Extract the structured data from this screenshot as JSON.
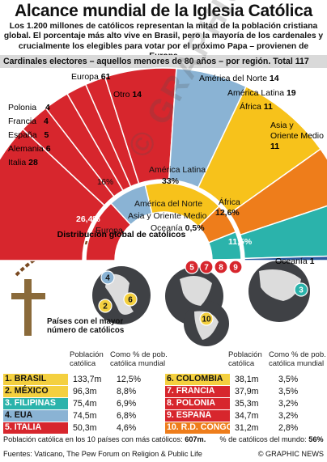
{
  "title": "Alcance mundial de la Iglesia Católica",
  "intro": "Los 1.200 millones de católicos representan la mitad de la población cristiana global. El porcentaje más alto vive en Brasil, pero la mayoría de los cardenales y crucialmente los elegibles para votar por el próximo Papa – provienen de Europa",
  "colors": {
    "europe": "#d7262d",
    "north_america": "#8ab3d4",
    "latin_america": "#f7c21b",
    "africa": "#ee7d1b",
    "asia": "#2bb3ab",
    "oceania": "#2c5aa0",
    "other": "#bdbdbd",
    "highlight_row": "#f4d03f"
  },
  "chart_data": [
    {
      "type": "bar",
      "title": "Cardinales electores – aquellos menores de 80 años – por región. Total 117",
      "total": 117,
      "categories": [
        "Italia",
        "Alemania",
        "España",
        "Francia",
        "Polonia",
        "Otro",
        "América del Norte",
        "América Latina",
        "África",
        "Asia y Oriente Medio",
        "Oceanía"
      ],
      "values": [
        28,
        6,
        5,
        4,
        4,
        14,
        14,
        19,
        11,
        11,
        1
      ],
      "europe_label": "Europa",
      "europe_total": 61,
      "labels": {
        "italia": "Italia",
        "alemania": "Alemania",
        "espana": "España",
        "francia": "Francia",
        "polonia": "Polonia",
        "otro": "Otro",
        "europa": "Europa",
        "america_norte": "América del Norte",
        "america_latina": "América Latina",
        "africa": "África",
        "asia_l1": "Asia y",
        "asia_l2": "Oriente Medio",
        "oceania": "Oceanía"
      }
    },
    {
      "type": "pie",
      "title": "Distribución global de católicos",
      "categories": [
        "Europa",
        "América del Norte",
        "América Latina",
        "África",
        "Asia y Oriente Medio",
        "Oceanía"
      ],
      "values": [
        26.4,
        16,
        33,
        12.6,
        11.5,
        0.5
      ],
      "value_labels": [
        "26,4%",
        "16%",
        "33%",
        "12,6%",
        "11,5%",
        "0,5%"
      ],
      "labels": {
        "europa": "Europa",
        "america_norte": "América del Norte",
        "america_latina": "América Latina",
        "africa": "África",
        "asia": "Asia y Oriente Medio",
        "oceania": "Oceanía"
      }
    }
  ],
  "map": {
    "legend": "Países con el mayor número de católicos",
    "markers": [
      "4",
      "2",
      "6",
      "5",
      "7",
      "8",
      "9",
      "10",
      "3"
    ]
  },
  "table": {
    "headers": {
      "population": "Población católica",
      "pct": "Como % de pob. católica mundial"
    },
    "rows_left": [
      {
        "name": "1. BRASIL",
        "pop": "133,7m",
        "pct": "12,5%",
        "color": "#f4d03f"
      },
      {
        "name": "2. MÉXICO",
        "pop": "96,3m",
        "pct": "8,8%",
        "color": "#f4d03f"
      },
      {
        "name": "3. FILIPINAS",
        "pop": "75,4m",
        "pct": "6,9%",
        "color": "#2bb3ab"
      },
      {
        "name": "4. EUA",
        "pop": "74,5m",
        "pct": "6,8%",
        "color": "#8ab3d4"
      },
      {
        "name": "5. ITALIA",
        "pop": "50,3m",
        "pct": "4,6%",
        "color": "#d7262d"
      }
    ],
    "rows_right": [
      {
        "name": "6. COLOMBIA",
        "pop": "38,1m",
        "pct": "3,5%",
        "color": "#f4d03f"
      },
      {
        "name": "7. FRANCIA",
        "pop": "37,9m",
        "pct": "3,5%",
        "color": "#d7262d"
      },
      {
        "name": "8. POLONIA",
        "pop": "35,3m",
        "pct": "3,2%",
        "color": "#d7262d"
      },
      {
        "name": "9. ESPAÑA",
        "pop": "34,7m",
        "pct": "3,2%",
        "color": "#d7262d"
      },
      {
        "name": "10. R.D. CONGO",
        "pop": "31,2m",
        "pct": "2,8%",
        "color": "#ee7d1b"
      }
    ]
  },
  "footer": {
    "summary_left": "Población católica en los 10 países con más católicos: ",
    "summary_left_value": "607m.",
    "summary_right": "% de católicos del mundo: ",
    "summary_right_value": "56%",
    "sources": "Fuentes: Vaticano, The Pew Forum on Religion & Public Life",
    "brand": "© GRAPHIC NEWS"
  },
  "watermark": "© GRAPHIC NEWS"
}
